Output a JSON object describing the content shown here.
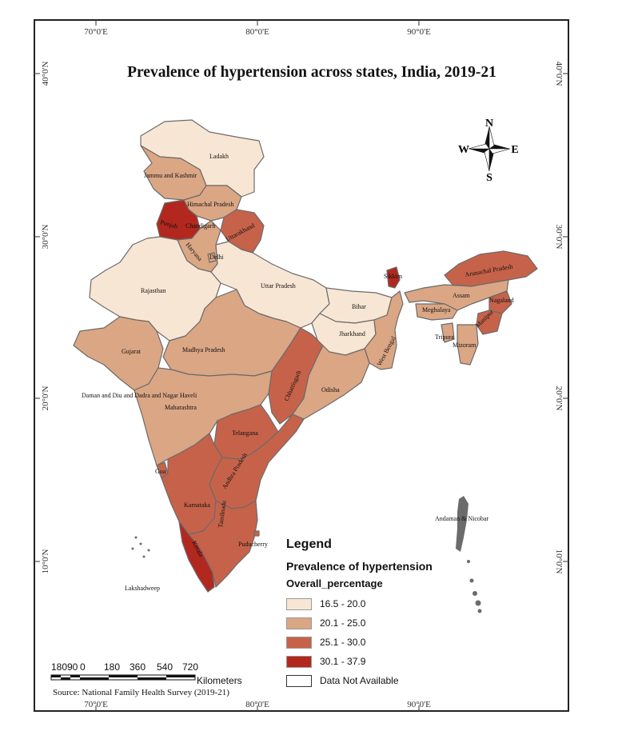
{
  "title": "Prevalence of hypertension across states, India, 2019-21",
  "graticule": {
    "longitudes": [
      "70°0'E",
      "80°0'E",
      "90°0'E"
    ],
    "latitudes": [
      "40°0'N",
      "30°0'N",
      "20°0'N",
      "10°0'N"
    ]
  },
  "compass": {
    "n": "N",
    "s": "S",
    "e": "E",
    "w": "W"
  },
  "legend": {
    "title": "Legend",
    "subtitle": "Prevalence of hypertension",
    "field": "Overall_percentage",
    "classes": [
      {
        "label": "16.5 - 20.0",
        "color": "#f8e6d4"
      },
      {
        "label": "20.1 - 25.0",
        "color": "#dba684"
      },
      {
        "label": "25.1 - 30.0",
        "color": "#c7624a"
      },
      {
        "label": "30.1 - 37.9",
        "color": "#b3281e"
      },
      {
        "label": "Data Not Available",
        "color": "#ffffff"
      }
    ]
  },
  "scale": {
    "ticks": [
      "180",
      "90",
      "0",
      "180",
      "360",
      "540",
      "720"
    ],
    "unit": "Kilometers"
  },
  "source": "Source: National Family Health Survey (2019-21)",
  "states": {
    "ladakh": "Ladakh",
    "jk": "Jammu and Kashmir",
    "hp": "Himachal Pradesh",
    "punjab": "Punjab",
    "chandigarh": "Chandigarh",
    "uttarakhand": "Uttarakhand",
    "haryana": "Haryana",
    "delhi": "Delhi",
    "rajasthan": "Rajasthan",
    "up": "Uttar Pradesh",
    "bihar": "Bihar",
    "sikkim": "Sikkim",
    "arunachal": "Arunachal Pradesh",
    "assam": "Assam",
    "meghalaya": "Meghalaya",
    "nagaland": "Nagaland",
    "manipur": "Manipur",
    "tripura": "Tripura",
    "mizoram": "Mizoram",
    "jharkhand": "Jharkhand",
    "wb": "West Bengal",
    "gujarat": "Gujarat",
    "mp": "Madhya Pradesh",
    "chhattisgarh": "Chhattisgarh",
    "odisha": "Odisha",
    "dnh": "Daman and Diu and Dadra and Nagar Haveli",
    "maharashtra": "Maharashtra",
    "telangana": "Telangana",
    "goa": "Goa",
    "ap": "Andhra Pradesh",
    "karnataka": "Karnataka",
    "kerala": "Kerala",
    "tn": "Tamilnadu",
    "puducherry": "Puducherry",
    "lakshadweep": "Lakshadweep",
    "andaman": "Andaman & Nicobar"
  }
}
